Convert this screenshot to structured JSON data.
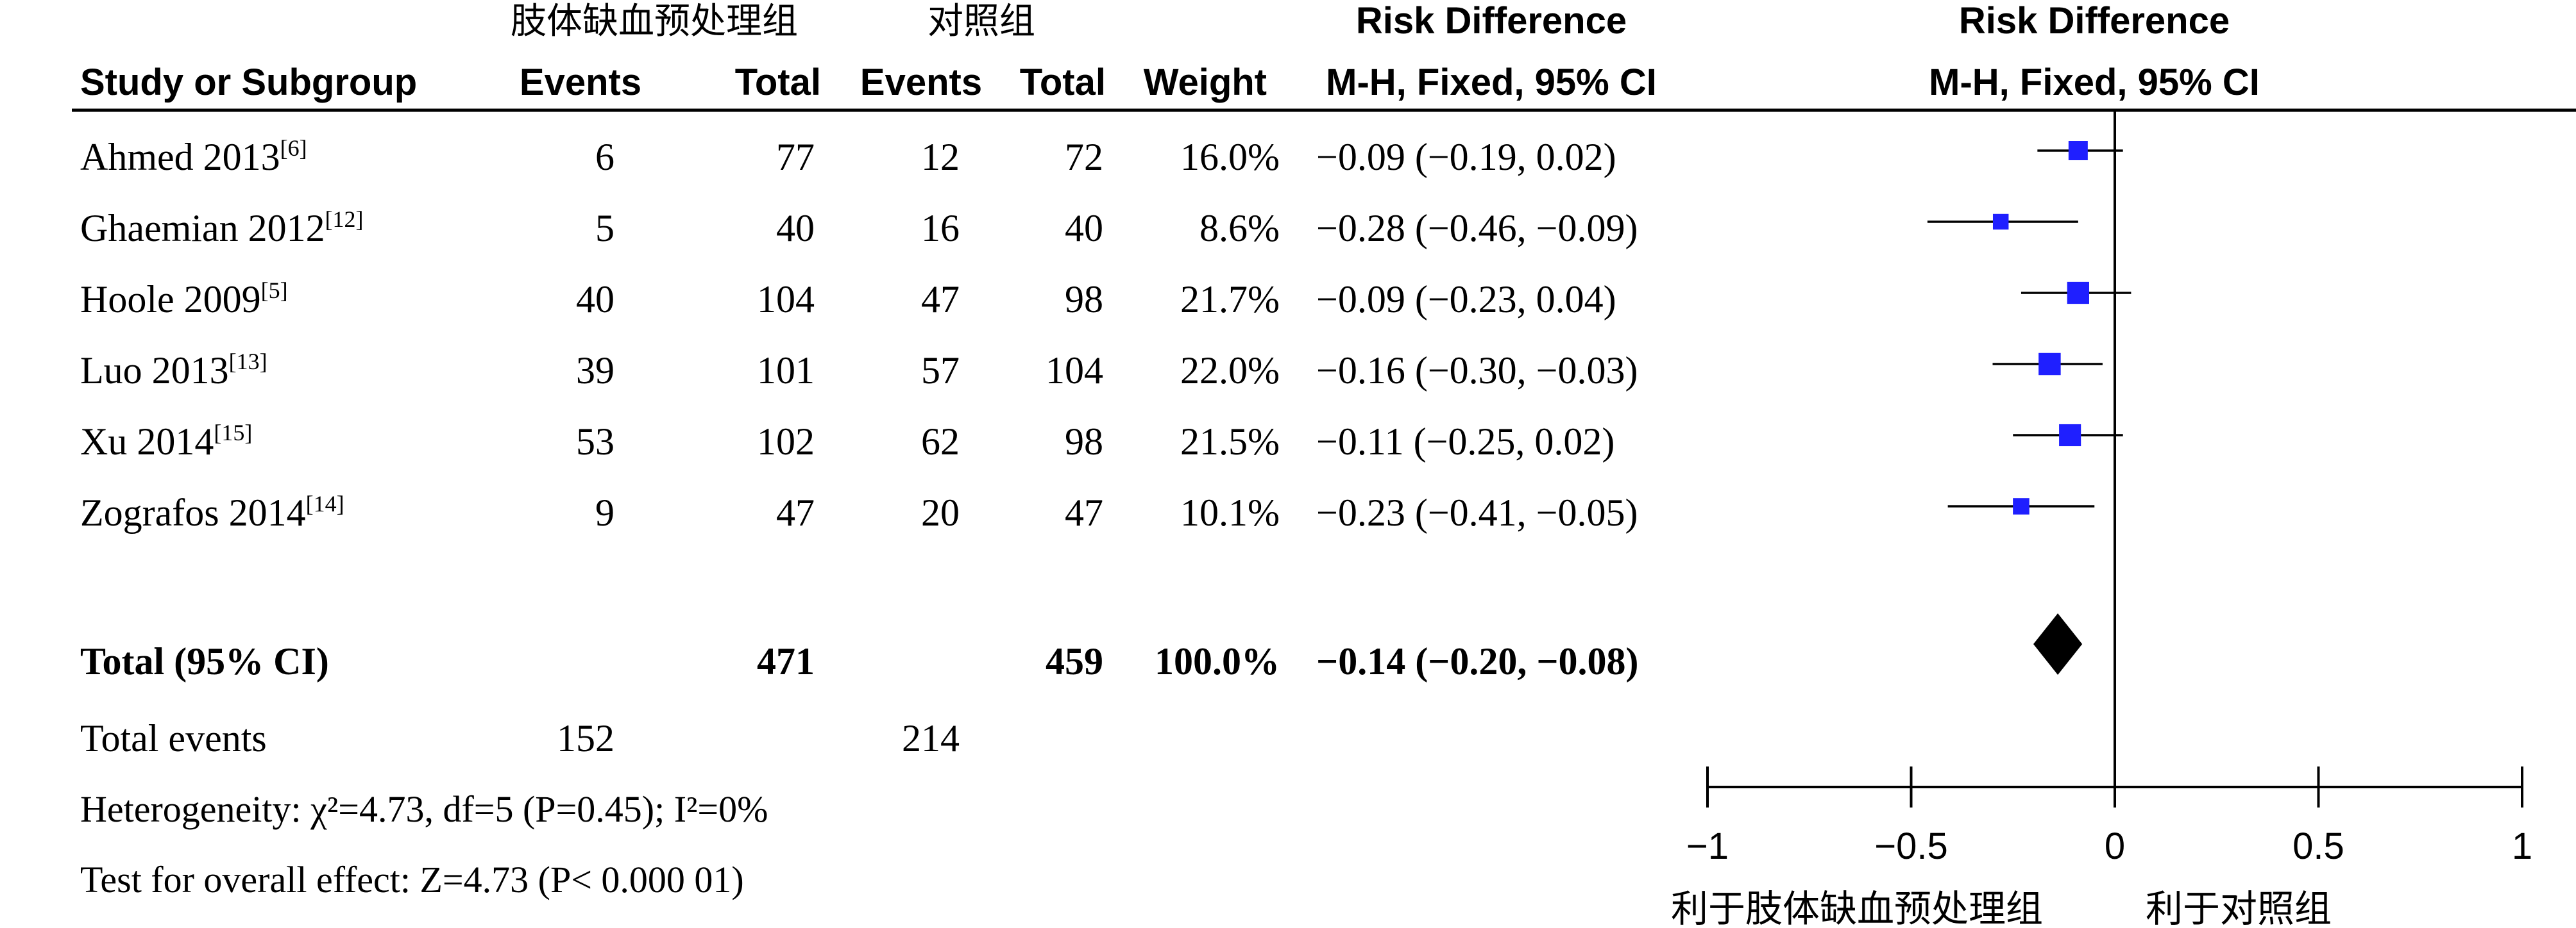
{
  "group_headers": {
    "experimental": "肢体缺血预处理组",
    "control": "对照组"
  },
  "columns": {
    "study": "Study or Subgroup",
    "exp_events": "Events",
    "exp_total": "Total",
    "ctl_events": "Events",
    "ctl_total": "Total",
    "weight": "Weight",
    "rd_title": "Risk Difference",
    "rd_method": "M-H, Fixed, 95% CI"
  },
  "plot_header": {
    "title": "Risk Difference",
    "method": "M-H, Fixed, 95% CI"
  },
  "studies": [
    {
      "name": "Ahmed 2013",
      "ref": "[6]",
      "exp_events": "6",
      "exp_total": "77",
      "ctl_events": "12",
      "ctl_total": "72",
      "weight": "16.0%",
      "ci_text": "−0.09 (−0.19, 0.02)"
    },
    {
      "name": "Ghaemian 2012",
      "ref": "[12]",
      "exp_events": "5",
      "exp_total": "40",
      "ctl_events": "16",
      "ctl_total": "40",
      "weight": "8.6%",
      "ci_text": "−0.28 (−0.46, −0.09)"
    },
    {
      "name": "Hoole 2009",
      "ref": "[5]",
      "exp_events": "40",
      "exp_total": "104",
      "ctl_events": "47",
      "ctl_total": "98",
      "weight": "21.7%",
      "ci_text": "−0.09 (−0.23, 0.04)"
    },
    {
      "name": "Luo 2013",
      "ref": "[13]",
      "exp_events": "39",
      "exp_total": "101",
      "ctl_events": "57",
      "ctl_total": "104",
      "weight": "22.0%",
      "ci_text": "−0.16 (−0.30, −0.03)"
    },
    {
      "name": "Xu 2014",
      "ref": "[15]",
      "exp_events": "53",
      "exp_total": "102",
      "ctl_events": "62",
      "ctl_total": "98",
      "weight": "21.5%",
      "ci_text": "−0.11 (−0.25, 0.02)"
    },
    {
      "name": "Zografos 2014",
      "ref": "[14]",
      "exp_events": "9",
      "exp_total": "47",
      "ctl_events": "20",
      "ctl_total": "47",
      "weight": "10.1%",
      "ci_text": "−0.23 (−0.41, −0.05)"
    }
  ],
  "total_row": {
    "label": "Total (95% CI)",
    "exp_total": "471",
    "ctl_total": "459",
    "weight": "100.0%",
    "ci_text": "−0.14 (−0.20, −0.08)"
  },
  "total_events": {
    "label": "Total events",
    "exp": "152",
    "ctl": "214"
  },
  "heterogeneity": "Heterogeneity: χ²=4.73, df=5 (P=0.45); I²=0%",
  "overall_effect": "Test for overall effect: Z=4.73 (P< 0.000 01)",
  "chart_data": {
    "type": "forest",
    "x_axis": {
      "min": -1,
      "max": 1,
      "ticks": [
        -1,
        -0.5,
        0,
        0.5,
        1
      ],
      "tick_labels": [
        "−1",
        "−0.5",
        "0",
        "0.5",
        "1"
      ]
    },
    "favours_left": "利于肢体缺血预处理组",
    "favours_right": "利于对照组",
    "marker_color": "#1f1fff",
    "studies": [
      {
        "name": "Ahmed 2013",
        "estimate": -0.09,
        "lower": -0.19,
        "upper": 0.02,
        "weight": 16.0
      },
      {
        "name": "Ghaemian 2012",
        "estimate": -0.28,
        "lower": -0.46,
        "upper": -0.09,
        "weight": 8.6
      },
      {
        "name": "Hoole 2009",
        "estimate": -0.09,
        "lower": -0.23,
        "upper": 0.04,
        "weight": 21.7
      },
      {
        "name": "Luo 2013",
        "estimate": -0.16,
        "lower": -0.3,
        "upper": -0.03,
        "weight": 22.0
      },
      {
        "name": "Xu 2014",
        "estimate": -0.11,
        "lower": -0.25,
        "upper": 0.02,
        "weight": 21.5
      },
      {
        "name": "Zografos 2014",
        "estimate": -0.23,
        "lower": -0.41,
        "upper": -0.05,
        "weight": 10.1
      }
    ],
    "pooled": {
      "estimate": -0.14,
      "lower": -0.2,
      "upper": -0.08
    }
  }
}
